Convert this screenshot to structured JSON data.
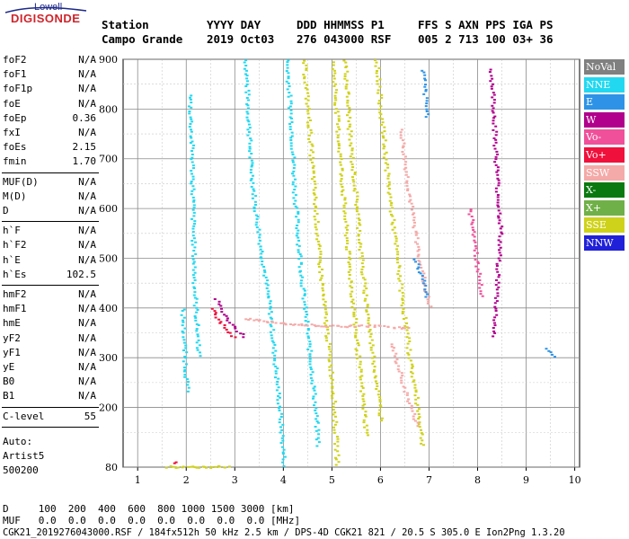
{
  "logo": {
    "line1": "Lowell",
    "line2": "DIGISONDE"
  },
  "header": {
    "labels": [
      "Station",
      "YYYY DAY",
      "DDD HHMMSS P1",
      "FFS S AXN PPS IGA PS"
    ],
    "station": "Campo Grande",
    "date_line": "2019 Oct03",
    "ddd_line": "276 043000 RSF",
    "ffs_line": "005 2 713 100 03+ 36"
  },
  "params": {
    "group1": [
      {
        "label": "foF2",
        "value": "N/A"
      },
      {
        "label": "foF1",
        "value": "N/A"
      },
      {
        "label": "foF1p",
        "value": "N/A"
      },
      {
        "label": "foE",
        "value": "N/A"
      },
      {
        "label": "foEp",
        "value": "0.36"
      },
      {
        "label": "fxI",
        "value": "N/A"
      },
      {
        "label": "foEs",
        "value": "2.15"
      },
      {
        "label": "fmin",
        "value": "1.70"
      }
    ],
    "group2": [
      {
        "label": "MUF(D)",
        "value": "N/A"
      },
      {
        "label": "M(D)",
        "value": "N/A"
      },
      {
        "label": "D",
        "value": "N/A"
      }
    ],
    "group3": [
      {
        "label": "h`F",
        "value": "N/A"
      },
      {
        "label": "h`F2",
        "value": "N/A"
      },
      {
        "label": "h`E",
        "value": "N/A"
      },
      {
        "label": "h`Es",
        "value": "102.5"
      }
    ],
    "group4": [
      {
        "label": "hmF2",
        "value": "N/A"
      },
      {
        "label": "hmF1",
        "value": "N/A"
      },
      {
        "label": "hmE",
        "value": "N/A"
      },
      {
        "label": "yF2",
        "value": "N/A"
      },
      {
        "label": "yF1",
        "value": "N/A"
      },
      {
        "label": "yE",
        "value": "N/A"
      },
      {
        "label": "B0",
        "value": "N/A"
      },
      {
        "label": "B1",
        "value": "N/A"
      }
    ],
    "group5": [
      {
        "label": "C-level",
        "value": "55"
      }
    ],
    "auto_lines": [
      "Auto:",
      "Artist5",
      "500200"
    ]
  },
  "legend": [
    {
      "label": "NoVal",
      "color": "#808080"
    },
    {
      "label": "NNE",
      "color": "#22d8f0"
    },
    {
      "label": "E",
      "color": "#2e93e6"
    },
    {
      "label": "W",
      "color": "#b0008c"
    },
    {
      "label": "Vo-",
      "color": "#f0509a"
    },
    {
      "label": "Vo+",
      "color": "#f0103c"
    },
    {
      "label": "SSW",
      "color": "#f4aaa8"
    },
    {
      "label": "X-",
      "color": "#0a7a10"
    },
    {
      "label": "X+",
      "color": "#70b048"
    },
    {
      "label": "SSE",
      "color": "#cfd21a"
    },
    {
      "label": "NNW",
      "color": "#2020d8"
    }
  ],
  "footer": {
    "d_line": "D     100  200  400  600  800 1000 1500 3000 [km]",
    "muf_line": "MUF   0.0  0.0  0.0  0.0  0.0  0.0  0.0  0.0 [MHz]",
    "info_line": "CGK21_2019276043000.RSF / 184fx512h 50 kHz 2.5 km / DPS-4D CGK21 821 / 20.5 S 305.0 E Ion2Png 1.3.20"
  },
  "chart_data": {
    "type": "scatter",
    "title": "",
    "xlabel": "",
    "ylabel": "",
    "xlim": [
      0.7,
      10.1
    ],
    "ylim": [
      80,
      900
    ],
    "x_ticks": [
      1,
      2,
      3,
      4,
      5,
      6,
      7,
      8,
      9,
      10
    ],
    "y_ticks": [
      80,
      200,
      300,
      400,
      500,
      600,
      700,
      800,
      900
    ],
    "grid": true,
    "legend_placement": "right",
    "series": [
      {
        "name": "NNE",
        "color": "#22d8f0",
        "traces": [
          [
            [
              3.2,
              900
            ],
            [
              3.3,
              700
            ],
            [
              3.4,
              600
            ],
            [
              3.55,
              500
            ],
            [
              3.7,
              400
            ],
            [
              3.8,
              300
            ],
            [
              3.9,
              200
            ],
            [
              4.0,
              80
            ]
          ],
          [
            [
              4.05,
              900
            ],
            [
              4.15,
              760
            ],
            [
              4.2,
              650
            ],
            [
              4.3,
              520
            ],
            [
              4.4,
              420
            ],
            [
              4.5,
              330
            ],
            [
              4.6,
              240
            ],
            [
              4.7,
              120
            ]
          ],
          [
            [
              2.05,
              830
            ],
            [
              2.1,
              700
            ],
            [
              2.12,
              560
            ],
            [
              2.15,
              440
            ],
            [
              2.2,
              360
            ],
            [
              2.25,
              300
            ]
          ],
          [
            [
              1.9,
              400
            ],
            [
              1.95,
              300
            ],
            [
              2.0,
              230
            ]
          ]
        ]
      },
      {
        "name": "SSE",
        "color": "#cfd21a",
        "traces": [
          [
            [
              4.4,
              900
            ],
            [
              4.5,
              780
            ],
            [
              4.6,
              650
            ],
            [
              4.7,
              520
            ],
            [
              4.8,
              420
            ],
            [
              4.9,
              330
            ],
            [
              5.0,
              240
            ],
            [
              5.05,
              150
            ],
            [
              5.1,
              80
            ]
          ],
          [
            [
              5.0,
              900
            ],
            [
              5.1,
              760
            ],
            [
              5.2,
              640
            ],
            [
              5.3,
              520
            ],
            [
              5.4,
              420
            ],
            [
              5.5,
              320
            ],
            [
              5.6,
              230
            ],
            [
              5.7,
              140
            ]
          ],
          [
            [
              5.25,
              900
            ],
            [
              5.35,
              740
            ],
            [
              5.5,
              600
            ],
            [
              5.6,
              480
            ],
            [
              5.75,
              360
            ],
            [
              5.9,
              250
            ],
            [
              6.0,
              170
            ]
          ],
          [
            [
              5.9,
              900
            ],
            [
              6.0,
              780
            ],
            [
              6.15,
              640
            ],
            [
              6.3,
              520
            ],
            [
              6.45,
              400
            ],
            [
              6.6,
              290
            ],
            [
              6.75,
              200
            ],
            [
              6.85,
              120
            ]
          ],
          [
            [
              1.6,
              82
            ],
            [
              2.2,
              82
            ],
            [
              2.9,
              82
            ]
          ]
        ]
      },
      {
        "name": "SSW",
        "color": "#f4aaa8",
        "traces": [
          [
            [
              6.4,
              760
            ],
            [
              6.5,
              680
            ],
            [
              6.6,
              610
            ],
            [
              6.75,
              520
            ],
            [
              6.9,
              440
            ],
            [
              7.0,
              400
            ]
          ],
          [
            [
              6.2,
              330
            ],
            [
              6.35,
              280
            ],
            [
              6.5,
              230
            ],
            [
              6.65,
              190
            ],
            [
              6.75,
              160
            ]
          ],
          [
            [
              3.2,
              380
            ],
            [
              4.0,
              370
            ],
            [
              5.0,
              365
            ],
            [
              6.0,
              365
            ],
            [
              6.6,
              360
            ]
          ]
        ]
      },
      {
        "name": "W",
        "color": "#b0008c",
        "traces": [
          [
            [
              8.25,
              880
            ],
            [
              8.3,
              820
            ],
            [
              8.4,
              620
            ],
            [
              8.45,
              560
            ],
            [
              8.35,
              400
            ],
            [
              8.3,
              340
            ]
          ],
          [
            [
              2.6,
              420
            ],
            [
              2.8,
              380
            ],
            [
              3.0,
              360
            ],
            [
              3.2,
              340
            ]
          ]
        ]
      },
      {
        "name": "E",
        "color": "#2e93e6",
        "traces": [
          [
            [
              6.85,
              880
            ],
            [
              6.9,
              820
            ],
            [
              6.95,
              780
            ]
          ],
          [
            [
              6.7,
              500
            ],
            [
              6.85,
              460
            ],
            [
              6.95,
              420
            ]
          ],
          [
            [
              9.4,
              320
            ],
            [
              9.6,
              300
            ]
          ]
        ]
      },
      {
        "name": "Vo-",
        "color": "#f0509a",
        "traces": [
          [
            [
              7.8,
              600
            ],
            [
              7.9,
              560
            ],
            [
              7.95,
              500
            ],
            [
              8.0,
              470
            ],
            [
              8.05,
              430
            ],
            [
              8.1,
              420
            ]
          ]
        ]
      },
      {
        "name": "Vo+",
        "color": "#f0103c",
        "traces": [
          [
            [
              2.5,
              400
            ],
            [
              2.7,
              370
            ],
            [
              2.9,
              350
            ],
            [
              3.0,
              340
            ]
          ],
          [
            [
              1.7,
              90
            ],
            [
              1.8,
              95
            ]
          ]
        ]
      }
    ]
  }
}
